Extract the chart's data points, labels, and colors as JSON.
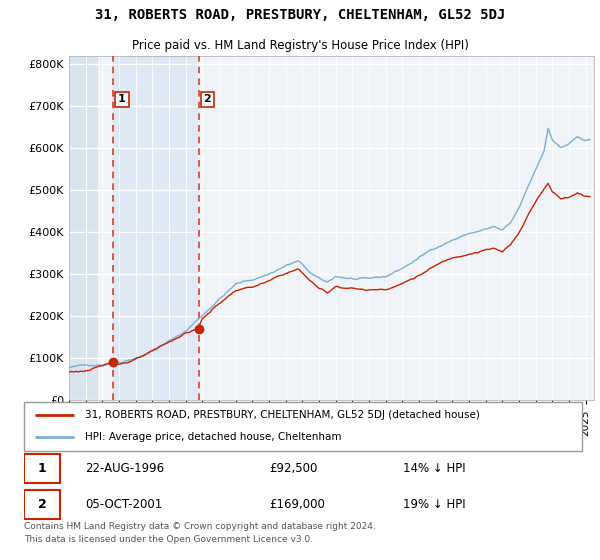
{
  "title": "31, ROBERTS ROAD, PRESTBURY, CHELTENHAM, GL52 5DJ",
  "subtitle": "Price paid vs. HM Land Registry's House Price Index (HPI)",
  "ylim": [
    0,
    820000
  ],
  "xlim_start": 1994.0,
  "xlim_end": 2025.5,
  "background_color": "#ffffff",
  "plot_bg_color": "#f0f4f8",
  "hpi_color": "#7aafd4",
  "price_color": "#cc2200",
  "transaction1": {
    "date": "22-AUG-1996",
    "price": 92500,
    "label": "1",
    "pct": "14% ↓ HPI",
    "x": 1996.64
  },
  "transaction2": {
    "date": "05-OCT-2001",
    "price": 169000,
    "label": "2",
    "pct": "19% ↓ HPI",
    "x": 2001.77
  },
  "legend_house_label": "31, ROBERTS ROAD, PRESTBURY, CHELTENHAM, GL52 5DJ (detached house)",
  "legend_hpi_label": "HPI: Average price, detached house, Cheltenham",
  "footer": "Contains HM Land Registry data © Crown copyright and database right 2024.\nThis data is licensed under the Open Government Licence v3.0.",
  "dashed_line1_x": 1996.64,
  "dashed_line2_x": 2001.77,
  "hatch_end": 1995.75,
  "shade_start": 1996.64,
  "shade_end": 2001.77
}
